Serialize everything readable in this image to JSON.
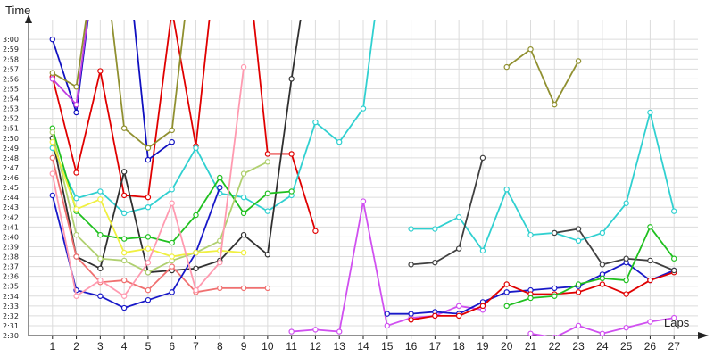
{
  "chart_data": {
    "type": "line",
    "ylabel": "Time",
    "xlabel": "Laps",
    "x": [
      1,
      2,
      3,
      4,
      5,
      6,
      7,
      8,
      9,
      10,
      11,
      12,
      13,
      14,
      15,
      16,
      17,
      18,
      19,
      20,
      21,
      22,
      23,
      24,
      25,
      26,
      27
    ],
    "xlim": [
      0,
      28
    ],
    "ylim": [
      150,
      182
    ],
    "y_units": "minutes",
    "y_ticks": [
      "2:30",
      "2:31",
      "2:32",
      "2:33",
      "2:34",
      "2:35",
      "2:36",
      "2:37",
      "2:38",
      "2:39",
      "2:40",
      "2:41",
      "2:42",
      "2:43",
      "2:44",
      "2:45",
      "2:46",
      "2:47",
      "2:48",
      "2:49",
      "2:50",
      "2:51",
      "2:52",
      "2:53",
      "2:54",
      "2:55",
      "2:56",
      "2:57",
      "2:58",
      "2:59",
      "3:00"
    ],
    "y_tick_values": [
      150,
      151,
      152,
      153,
      154,
      155,
      156,
      157,
      158,
      159,
      160,
      161,
      162,
      163,
      164,
      165,
      166,
      167,
      168,
      169,
      170,
      171,
      172,
      173,
      174,
      175,
      176,
      177,
      178,
      179,
      180
    ],
    "grid": true,
    "legend": "none",
    "series": [
      {
        "color": "#e00000",
        "values": [
          176.2,
          166.5,
          176.8,
          164.2,
          164.0,
          183.0,
          169.2,
          192.0,
          192.0,
          168.4,
          168.4,
          160.6,
          null,
          null,
          null,
          null,
          null,
          null,
          null,
          null,
          null,
          null,
          null,
          null,
          null,
          null,
          null
        ]
      },
      {
        "color": "#1010c0",
        "values": [
          180.0,
          172.6,
          192.0,
          192.0,
          167.8,
          169.6,
          null,
          null,
          null,
          null,
          null,
          null,
          null,
          null,
          null,
          null,
          null,
          null,
          null,
          null,
          null,
          null,
          null,
          null,
          null,
          null,
          null
        ]
      },
      {
        "color": "#c040e0",
        "values": [
          176.0,
          173.4,
          192.0,
          null,
          null,
          null,
          null,
          null,
          null,
          null,
          null,
          null,
          null,
          null,
          null,
          null,
          null,
          null,
          null,
          null,
          null,
          null,
          null,
          null,
          null,
          null,
          null
        ]
      },
      {
        "color": "#30d0d0",
        "values": [
          169.0,
          163.9,
          164.6,
          162.4,
          163.0,
          164.8,
          169.0,
          164.4,
          164.0,
          162.6,
          164.2,
          171.6,
          169.6,
          173.0,
          192.0,
          null,
          null,
          null,
          null,
          null,
          null,
          null,
          null,
          null,
          null,
          null,
          null
        ]
      },
      {
        "color": "#909030",
        "values": [
          176.6,
          175.2,
          192.0,
          171.0,
          169.0,
          170.8,
          192.0,
          null,
          null,
          null,
          null,
          null,
          null,
          null,
          null,
          null,
          null,
          null,
          null,
          null,
          null,
          null,
          null,
          null,
          null,
          null,
          null
        ]
      },
      {
        "color": "#303030",
        "values": [
          170.0,
          158.0,
          156.8,
          166.6,
          156.4,
          156.6,
          156.8,
          157.6,
          160.2,
          158.2,
          176.0,
          192.0,
          null,
          null,
          null,
          null,
          null,
          null,
          null,
          null,
          null,
          null,
          null,
          null,
          null,
          null,
          null
        ]
      },
      {
        "color": "#20c020",
        "values": [
          171.0,
          162.6,
          160.2,
          159.8,
          160.0,
          159.4,
          162.2,
          166.0,
          162.4,
          164.4,
          164.6,
          null,
          null,
          null,
          null,
          null,
          null,
          null,
          null,
          null,
          null,
          null,
          null,
          null,
          null,
          null,
          null
        ]
      },
      {
        "color": "#f07070",
        "values": [
          168.0,
          158.0,
          155.4,
          155.6,
          154.6,
          157.0,
          154.4,
          154.8,
          154.8,
          154.8,
          null,
          null,
          null,
          null,
          null,
          null,
          null,
          null,
          null,
          null,
          null,
          null,
          null,
          null,
          null,
          null,
          null
        ]
      },
      {
        "color": "#b0d070",
        "values": [
          170.6,
          160.2,
          157.8,
          157.6,
          156.4,
          157.6,
          158.4,
          159.6,
          166.4,
          167.6,
          null,
          null,
          null,
          null,
          null,
          null,
          null,
          null,
          null,
          null,
          null,
          null,
          null,
          null,
          null,
          null,
          null
        ]
      },
      {
        "color": "#1818c8",
        "values": [
          164.2,
          154.6,
          154.0,
          152.8,
          153.6,
          154.4,
          158.4,
          165.0,
          null,
          null,
          null,
          null,
          null,
          null,
          null,
          null,
          null,
          null,
          null,
          null,
          null,
          null,
          null,
          null,
          null,
          null,
          null
        ]
      },
      {
        "color": "#f0f040",
        "values": [
          169.6,
          162.8,
          163.8,
          158.4,
          158.8,
          158.0,
          158.4,
          158.6,
          158.4,
          null,
          null,
          null,
          null,
          null,
          null,
          null,
          null,
          null,
          null,
          null,
          null,
          null,
          null,
          null,
          null,
          null,
          null
        ]
      },
      {
        "color": "#ff9ab0",
        "values": [
          166.4,
          154.0,
          155.6,
          154.0,
          157.4,
          163.4,
          154.6,
          157.4,
          177.2,
          null,
          null,
          null,
          null,
          null,
          null,
          null,
          null,
          null,
          null,
          null,
          null,
          null,
          null,
          null,
          null,
          null,
          null
        ]
      },
      {
        "color": "#d050f0",
        "values": [
          null,
          null,
          null,
          null,
          null,
          null,
          null,
          null,
          null,
          null,
          150.4,
          150.6,
          150.4,
          163.6,
          151.0,
          151.8,
          152.0,
          153.0,
          152.6,
          null,
          150.2,
          149.8,
          151.0,
          150.2,
          150.8,
          151.4,
          151.8
        ]
      },
      {
        "color": "#1818c8",
        "values": [
          null,
          null,
          null,
          null,
          null,
          null,
          null,
          null,
          null,
          null,
          null,
          null,
          null,
          null,
          152.2,
          152.2,
          152.4,
          152.2,
          153.4,
          154.4,
          154.6,
          154.8,
          155.0,
          156.2,
          157.4,
          155.6,
          156.6
        ]
      },
      {
        "color": "#30d0d0",
        "values": [
          null,
          null,
          null,
          null,
          null,
          null,
          null,
          null,
          null,
          null,
          null,
          null,
          null,
          null,
          null,
          160.8,
          160.8,
          162.0,
          158.6,
          164.8,
          160.2,
          160.4,
          159.6,
          160.4,
          163.4,
          172.6,
          162.6
        ]
      },
      {
        "color": "#e00000",
        "values": [
          null,
          null,
          null,
          null,
          null,
          null,
          null,
          null,
          null,
          null,
          null,
          null,
          null,
          null,
          null,
          151.6,
          152.0,
          152.0,
          153.0,
          155.2,
          154.2,
          154.2,
          154.4,
          155.2,
          154.2,
          155.6,
          156.4
        ]
      },
      {
        "color": "#404040",
        "values": [
          null,
          null,
          null,
          null,
          null,
          null,
          null,
          null,
          null,
          null,
          null,
          null,
          null,
          null,
          null,
          157.2,
          157.4,
          158.8,
          168.0,
          null,
          null,
          160.4,
          160.8,
          157.2,
          157.8,
          157.6,
          156.6
        ]
      },
      {
        "color": "#909030",
        "values": [
          null,
          null,
          null,
          null,
          null,
          null,
          null,
          null,
          null,
          null,
          null,
          null,
          null,
          null,
          null,
          null,
          null,
          null,
          null,
          177.2,
          179.0,
          173.4,
          177.8,
          null,
          null,
          null,
          null
        ]
      },
      {
        "color": "#20c020",
        "values": [
          null,
          null,
          null,
          null,
          null,
          null,
          null,
          null,
          null,
          null,
          null,
          null,
          null,
          null,
          null,
          null,
          null,
          null,
          null,
          153.0,
          153.8,
          154.0,
          155.2,
          155.8,
          155.6,
          161.0,
          157.8
        ]
      }
    ]
  }
}
